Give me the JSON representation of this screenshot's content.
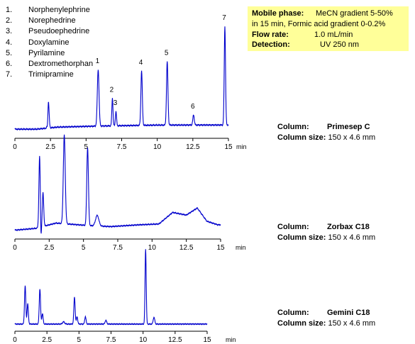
{
  "legend": [
    {
      "num": "1.",
      "name": "Norphenylephrine"
    },
    {
      "num": "2.",
      "name": "Norephedrine"
    },
    {
      "num": "3.",
      "name": "Pseudoephedrine"
    },
    {
      "num": "4.",
      "name": "Doxylamine"
    },
    {
      "num": "5.",
      "name": "Pyrilamine"
    },
    {
      "num": "6.",
      "name": "Dextromethorphan"
    },
    {
      "num": "7.",
      "name": "Trimipramine"
    }
  ],
  "conditions": {
    "mobile_phase_label": "Mobile phase:",
    "mobile_phase_value": "MeCN gradient  5-50%",
    "mobile_phase_cont": "in 15 min, Formic acid gradient 0-0.2%",
    "flow_label": "Flow rate:",
    "flow_value": "1.0 mL/min",
    "detection_label": "Detection:",
    "detection_value": "UV  250 nm",
    "background": "#ffff99"
  },
  "colors": {
    "trace": "#0000cc",
    "axis": "#000000"
  },
  "chart_data": [
    {
      "type": "line",
      "xunit": "min",
      "xlim": [
        0,
        15
      ],
      "ticks": [
        "0",
        "2.5",
        "5",
        "7.5",
        "10",
        "12.5",
        "15"
      ],
      "column_label": "Column:",
      "column_name": "Primesep  C",
      "size_label": "Column size:",
      "size_value": "150 x  4.6 mm",
      "baseline": 0.02,
      "drift": [
        [
          0,
          0.0
        ],
        [
          1.5,
          0.0
        ],
        [
          3.0,
          0.02
        ],
        [
          6.0,
          0.03
        ],
        [
          10.0,
          0.04
        ],
        [
          15.0,
          0.04
        ]
      ],
      "dip": {
        "x": 2.3,
        "depth": 0.09
      },
      "peaks": [
        {
          "x": 2.35,
          "h": 0.27,
          "w": 0.05
        },
        {
          "x": 5.85,
          "h": 0.55,
          "w": 0.06,
          "label": "1"
        },
        {
          "x": 6.85,
          "h": 0.27,
          "w": 0.04,
          "label": "2"
        },
        {
          "x": 7.1,
          "h": 0.14,
          "w": 0.04,
          "label": "3"
        },
        {
          "x": 8.9,
          "h": 0.53,
          "w": 0.05,
          "label": "4"
        },
        {
          "x": 10.7,
          "h": 0.62,
          "w": 0.05,
          "label": "5"
        },
        {
          "x": 12.55,
          "h": 0.1,
          "w": 0.05,
          "label": "6"
        },
        {
          "x": 14.75,
          "h": 0.96,
          "w": 0.045,
          "label": "7"
        }
      ]
    },
    {
      "type": "line",
      "xunit": "min",
      "xlim": [
        0,
        15
      ],
      "ticks": [
        "0",
        "2.5",
        "5",
        "7.5",
        "10",
        "12.5",
        "15"
      ],
      "column_label": "Column:",
      "column_name": "Zorbax C18",
      "size_label": "Column size:",
      "size_value": "150 x  4.6 mm",
      "baseline": 0.02,
      "drift": [
        [
          0,
          0.0
        ],
        [
          1.5,
          0.02
        ],
        [
          3.0,
          0.08
        ],
        [
          5.5,
          0.05
        ],
        [
          7.0,
          0.04
        ],
        [
          9.0,
          0.06
        ],
        [
          10.5,
          0.07
        ],
        [
          11.5,
          0.2
        ],
        [
          12.5,
          0.17
        ],
        [
          13.3,
          0.25
        ],
        [
          14.0,
          0.1
        ],
        [
          14.8,
          0.06
        ]
      ],
      "dip": {
        "x": 1.9,
        "depth": 0.16
      },
      "peaks": [
        {
          "x": 1.8,
          "h": 0.8,
          "w": 0.05
        },
        {
          "x": 2.05,
          "h": 0.38,
          "w": 0.05
        },
        {
          "x": 3.6,
          "h": 1.0,
          "w": 0.07
        },
        {
          "x": 5.3,
          "h": 0.88,
          "w": 0.06
        },
        {
          "x": 6.0,
          "h": 0.12,
          "w": 0.12
        }
      ]
    },
    {
      "type": "line",
      "xunit": "min",
      "xlim": [
        0,
        15
      ],
      "ticks": [
        "0",
        "2.5",
        "5",
        "7.5",
        "10",
        "12.5",
        "15"
      ],
      "column_label": "Column:",
      "column_name": "Gemini C18",
      "size_label": "Column size:",
      "size_value": "150 x  4.6 mm",
      "baseline": 0.02,
      "drift": [
        [
          0,
          0.0
        ],
        [
          15,
          0.0
        ]
      ],
      "dip": null,
      "peaks": [
        {
          "x": 0.8,
          "h": 0.51,
          "w": 0.05
        },
        {
          "x": 1.0,
          "h": 0.27,
          "w": 0.05
        },
        {
          "x": 1.95,
          "h": 0.47,
          "w": 0.05
        },
        {
          "x": 2.15,
          "h": 0.14,
          "w": 0.05
        },
        {
          "x": 3.8,
          "h": 0.03,
          "w": 0.08
        },
        {
          "x": 4.65,
          "h": 0.36,
          "w": 0.05
        },
        {
          "x": 4.85,
          "h": 0.1,
          "w": 0.05
        },
        {
          "x": 5.5,
          "h": 0.1,
          "w": 0.05
        },
        {
          "x": 7.1,
          "h": 0.05,
          "w": 0.06
        },
        {
          "x": 10.2,
          "h": 1.0,
          "w": 0.045
        },
        {
          "x": 10.85,
          "h": 0.09,
          "w": 0.06
        }
      ]
    }
  ]
}
